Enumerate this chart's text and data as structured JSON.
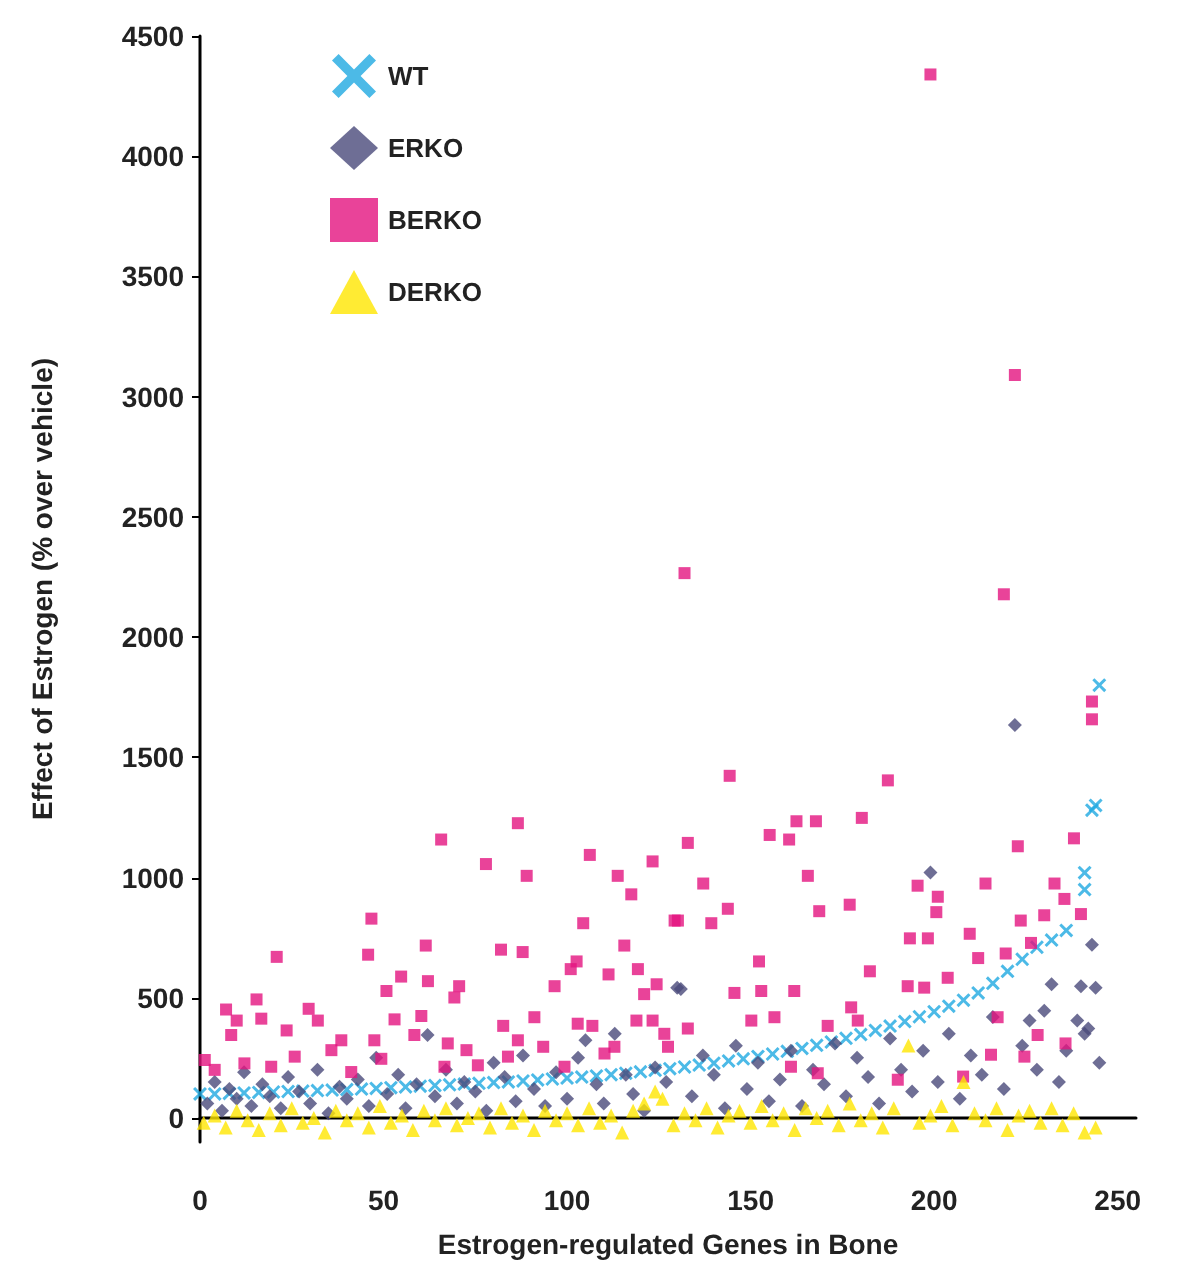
{
  "chart_data": {
    "type": "scatter",
    "xlabel": "Estrogen-regulated Genes in Bone",
    "ylabel": "Effect of Estrogen (% over vehicle)",
    "xlim": [
      0,
      255
    ],
    "xticks": [
      0,
      50,
      100,
      150,
      200,
      250
    ],
    "ylim": [
      -100,
      4500
    ],
    "yticks": [
      0,
      500,
      1000,
      1500,
      2000,
      2500,
      3000,
      3500,
      4000,
      4500
    ],
    "grid": false,
    "legend": "top left",
    "series": [
      {
        "name": "WT",
        "color": "#1fa9e1",
        "marker": "cross",
        "x": [
          0,
          4,
          8,
          12,
          16,
          20,
          24,
          28,
          32,
          36,
          40,
          44,
          48,
          52,
          56,
          60,
          64,
          68,
          72,
          76,
          80,
          84,
          88,
          92,
          96,
          100,
          104,
          108,
          112,
          116,
          120,
          124,
          128,
          132,
          136,
          140,
          144,
          148,
          152,
          156,
          160,
          164,
          168,
          172,
          176,
          180,
          184,
          188,
          192,
          196,
          200,
          204,
          208,
          212,
          216,
          220,
          224,
          228,
          232,
          236,
          241,
          241,
          243,
          244,
          245
        ],
        "values": [
          100,
          100,
          102,
          104,
          106,
          108,
          110,
          112,
          114,
          116,
          118,
          120,
          123,
          126,
          129,
          132,
          135,
          138,
          141,
          144,
          147,
          150,
          154,
          158,
          162,
          166,
          170,
          175,
          180,
          186,
          192,
          198,
          205,
          212,
          220,
          228,
          237,
          246,
          256,
          266,
          277,
          289,
          302,
          316,
          331,
          347,
          364,
          382,
          401,
          421,
          442,
          465,
          490,
          520,
          560,
          610,
          660,
          710,
          740,
          780,
          950,
          1020,
          1280,
          1300,
          1800
        ]
      },
      {
        "name": "ERKO",
        "color": "#4a4a7a",
        "marker": "diamond",
        "x": [
          2,
          4,
          6,
          8,
          10,
          12,
          14,
          17,
          19,
          22,
          24,
          27,
          30,
          32,
          35,
          38,
          40,
          43,
          46,
          48,
          51,
          54,
          56,
          59,
          62,
          64,
          67,
          70,
          72,
          75,
          78,
          80,
          83,
          86,
          88,
          91,
          94,
          97,
          100,
          103,
          105,
          108,
          110,
          113,
          116,
          118,
          121,
          124,
          127,
          130,
          131,
          134,
          137,
          140,
          143,
          146,
          149,
          152,
          155,
          158,
          161,
          164,
          167,
          170,
          173,
          176,
          179,
          182,
          185,
          188,
          191,
          194,
          197,
          199,
          201,
          204,
          207,
          210,
          213,
          216,
          219,
          222,
          224,
          226,
          228,
          230,
          232,
          234,
          236,
          239,
          240,
          241,
          242,
          243,
          244,
          245
        ],
        "values": [
          60,
          150,
          30,
          120,
          80,
          190,
          50,
          140,
          90,
          40,
          170,
          110,
          60,
          200,
          20,
          130,
          80,
          160,
          50,
          250,
          100,
          180,
          40,
          140,
          345,
          90,
          200,
          60,
          150,
          110,
          30,
          230,
          170,
          70,
          260,
          120,
          50,
          190,
          80,
          250,
          323,
          140,
          60,
          350,
          180,
          100,
          30,
          210,
          150,
          542,
          536,
          90,
          260,
          180,
          40,
          300,
          120,
          230,
          70,
          160,
          280,
          50,
          200,
          140,
          310,
          90,
          250,
          170,
          60,
          330,
          200,
          110,
          280,
          1021,
          150,
          350,
          80,
          260,
          180,
          420,
          120,
          1634,
          300,
          405,
          200,
          446,
          556,
          150,
          280,
          405,
          548,
          350,
          372,
          720,
          542,
          230
        ]
      },
      {
        "name": "BERKO",
        "color": "#e4147f",
        "marker": "square",
        "x": [
          1.3,
          4,
          7.1,
          8.5,
          10,
          12.1,
          15.4,
          16.7,
          19.4,
          20.9,
          23.6,
          25.8,
          29.6,
          32.1,
          35.8,
          38.5,
          41.2,
          45.8,
          46.7,
          47.5,
          49.4,
          50.8,
          53,
          54.8,
          58.4,
          60.3,
          61.5,
          62.1,
          65.7,
          66.6,
          67.5,
          69.3,
          70.6,
          72.6,
          75.7,
          77.9,
          82,
          82.6,
          83.9,
          86.6,
          86.6,
          87.9,
          89,
          91.1,
          93.5,
          96.6,
          99.3,
          101,
          102.6,
          102.9,
          104.4,
          106.2,
          106.9,
          110.2,
          111.3,
          112.9,
          113.8,
          115.6,
          117.5,
          118.9,
          119.3,
          121,
          123.3,
          123.3,
          124.4,
          126.5,
          127.5,
          129.3,
          130.2,
          132,
          132.9,
          132.9,
          137.1,
          139.3,
          143.8,
          144.3,
          145.6,
          150.2,
          152.3,
          152.9,
          155.2,
          156.5,
          160.5,
          161,
          161.9,
          162.5,
          165.6,
          167.8,
          168.3,
          168.7,
          171,
          177,
          177.4,
          179.2,
          180.3,
          182.5,
          187.4,
          190.1,
          192.8,
          193.4,
          195.5,
          197.3,
          198.3,
          199,
          200.6,
          201,
          203.7,
          207.9,
          209.7,
          212,
          214,
          215.5,
          217.3,
          219,
          219.5,
          222,
          222.8,
          223.6,
          224.6,
          226.4,
          228.2,
          230,
          232.8,
          235.5,
          235.8,
          238.1,
          240,
          243,
          243
        ],
        "values": [
          241,
          200,
          451,
          345,
          405,
          227,
          493,
          413,
          213,
          670,
          364,
          255,
          454,
          405,
          282,
          323,
          191,
          679,
          829,
          323,
          246,
          528,
          410,
          588,
          345,
          424,
          717,
          569,
          1158,
          213,
          310,
          501,
          548,
          282,
          219,
          1056,
          700,
          383,
          255,
          1226,
          323,
          690,
          1007,
          419,
          296,
          548,
          213,
          619,
          651,
          392,
          810,
          1094,
          383,
          268,
          597,
          296,
          1007,
          717,
          930,
          405,
          619,
          515,
          1067,
          405,
          556,
          350,
          296,
          821,
          821,
          2266,
          1144,
          372,
          975,
          810,
          870,
          1423,
          520,
          405,
          651,
          528,
          1177,
          419,
          1158,
          213,
          528,
          1234,
          1007,
          1234,
          186,
          860,
          383,
          887,
          460,
          405,
          1248,
          610,
          1404,
          159,
          548,
          747,
          966,
          542,
          747,
          4340,
          856,
          920,
          583,
          172,
          766,
          665,
          975,
          263,
          419,
          2178,
          684,
          3090,
          1130,
          821,
          255,
          728,
          345,
          843,
          975,
          911,
          310,
          1163,
          848,
          1732,
          1658
        ]
      },
      {
        "name": "DERKO",
        "color": "#ffe600",
        "marker": "triangle",
        "x": [
          1,
          4,
          7,
          10,
          13,
          16,
          19,
          22,
          25,
          28,
          31,
          34,
          37,
          40,
          43,
          46,
          49,
          52,
          55,
          58,
          61,
          64,
          67,
          70,
          73,
          76,
          79,
          82,
          85,
          88,
          91,
          94,
          97,
          100,
          103,
          106,
          109,
          112,
          115,
          118,
          121,
          124,
          126,
          129,
          132,
          135,
          138,
          141,
          144,
          147,
          150,
          153,
          156,
          159,
          162,
          165,
          168,
          171,
          174,
          177,
          180,
          183,
          186,
          189,
          193,
          196,
          199,
          202,
          205,
          208,
          211,
          214,
          217,
          220,
          223,
          226,
          229,
          232,
          235,
          238,
          241,
          244
        ],
        "values": [
          -20,
          10,
          -40,
          30,
          -10,
          -50,
          20,
          -30,
          40,
          -20,
          0,
          -60,
          30,
          -10,
          20,
          -40,
          50,
          -20,
          10,
          -50,
          30,
          -10,
          40,
          -30,
          0,
          20,
          -40,
          40,
          -20,
          10,
          -50,
          30,
          -10,
          20,
          -30,
          40,
          -20,
          10,
          -60,
          30,
          60,
          110,
          80,
          -30,
          20,
          -10,
          40,
          -40,
          10,
          30,
          -20,
          50,
          -10,
          20,
          -50,
          40,
          0,
          30,
          -30,
          60,
          -10,
          20,
          -40,
          40,
          301,
          -20,
          10,
          50,
          -30,
          150,
          20,
          -10,
          40,
          -50,
          10,
          30,
          -20,
          40,
          -30,
          20,
          -60,
          -40
        ]
      }
    ]
  }
}
